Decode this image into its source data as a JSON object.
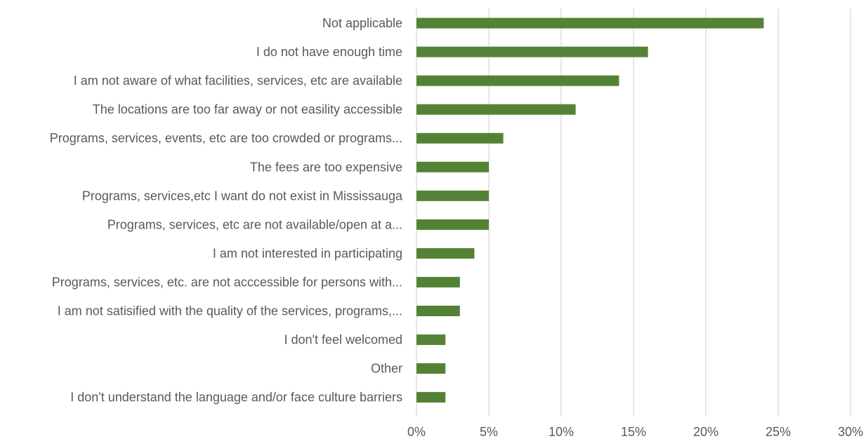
{
  "chart_data": {
    "type": "bar",
    "orientation": "horizontal",
    "title": "",
    "xlabel": "",
    "ylabel": "",
    "categories": [
      "Not applicable",
      "I do not have enough time",
      "I am not aware of what facilities, services, etc are available",
      "The locations are too far away or not easility accessible",
      "Programs, services, events, etc are too crowded or programs...",
      "The fees are too expensive",
      "Programs, services,etc I want do not exist in Mississauga",
      "Programs, services, etc are not available/open at a...",
      "I am not interested in participating",
      "Programs, services, etc. are not acccessible for persons with...",
      "I am not satisified with the quality of the services, programs,...",
      "I don't feel welcomed",
      "Other",
      "I don't understand the language and/or face culture barriers"
    ],
    "values": [
      24,
      16,
      14,
      11,
      6,
      5,
      5,
      5,
      4,
      3,
      3,
      2,
      2,
      2
    ],
    "value_unit": "%",
    "xlim": [
      0,
      30
    ],
    "x_ticks": [
      "0%",
      "5%",
      "10%",
      "15%",
      "20%",
      "25%",
      "30%"
    ],
    "grid": "vertical",
    "bar_color": "#548235",
    "grid_color": "#d9d9d9",
    "text_color": "#595959"
  }
}
